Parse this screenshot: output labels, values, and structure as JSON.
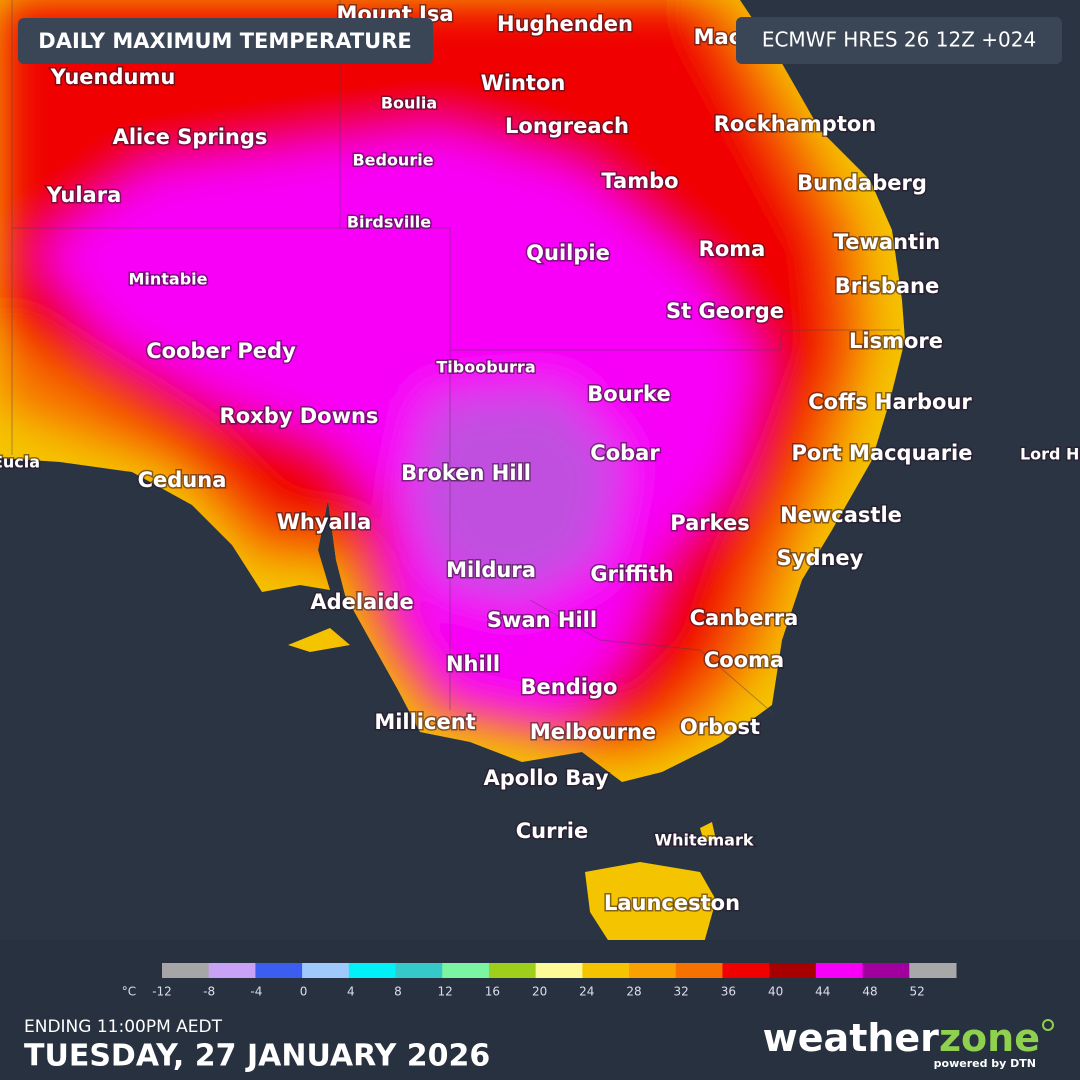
{
  "header": {
    "title": "DAILY MAXIMUM TEMPERATURE",
    "model": "ECMWF HRES 26 12Z +024"
  },
  "places": [
    "Mount Isa",
    "Hughenden",
    "Mackay",
    "Yuendumu",
    "Boulia",
    "Winton",
    "Alice Springs",
    "Longreach",
    "Rockhampton",
    "Bedourie",
    "Tambo",
    "Bundaberg",
    "Yulara",
    "Birdsville",
    "Quilpie",
    "Roma",
    "Tewantin",
    "Mintabie",
    "Brisbane",
    "St George",
    "Coober Pedy",
    "Lismore",
    "Tibooburra",
    "Bourke",
    "Roxby Downs",
    "Coffs Harbour",
    "Cobar",
    "Port Macquarie",
    "Lord Howe",
    "Eucla",
    "Ceduna",
    "Broken Hill",
    "Whyalla",
    "Parkes",
    "Newcastle",
    "Sydney",
    "Mildura",
    "Griffith",
    "Adelaide",
    "Swan Hill",
    "Canberra",
    "Nhill",
    "Cooma",
    "Bendigo",
    "Millicent",
    "Melbourne",
    "Orbost",
    "Apollo Bay",
    "Currie",
    "Whitemark",
    "Launceston"
  ],
  "legend": {
    "unit": "°C",
    "ticks": [
      -12,
      -8,
      -4,
      0,
      4,
      8,
      12,
      16,
      20,
      24,
      28,
      32,
      36,
      40,
      44,
      48,
      52
    ],
    "colors": [
      "#a6a6a6",
      "#c9a2f5",
      "#3b5ef0",
      "#9fc9fa",
      "#00f2f8",
      "#36c9c9",
      "#7cf5a2",
      "#9ecf1a",
      "#fdfa98",
      "#f5c400",
      "#f8a100",
      "#f77100",
      "#f00000",
      "#a80000",
      "#f800f8",
      "#a0009d",
      "#a8a8a8"
    ]
  },
  "footer": {
    "ending": "ENDING 11:00PM AEDT",
    "date": "TUESDAY, 27 JANUARY 2026",
    "brand_a": "weather",
    "brand_b": "zone",
    "powered": "powered by DTN"
  }
}
